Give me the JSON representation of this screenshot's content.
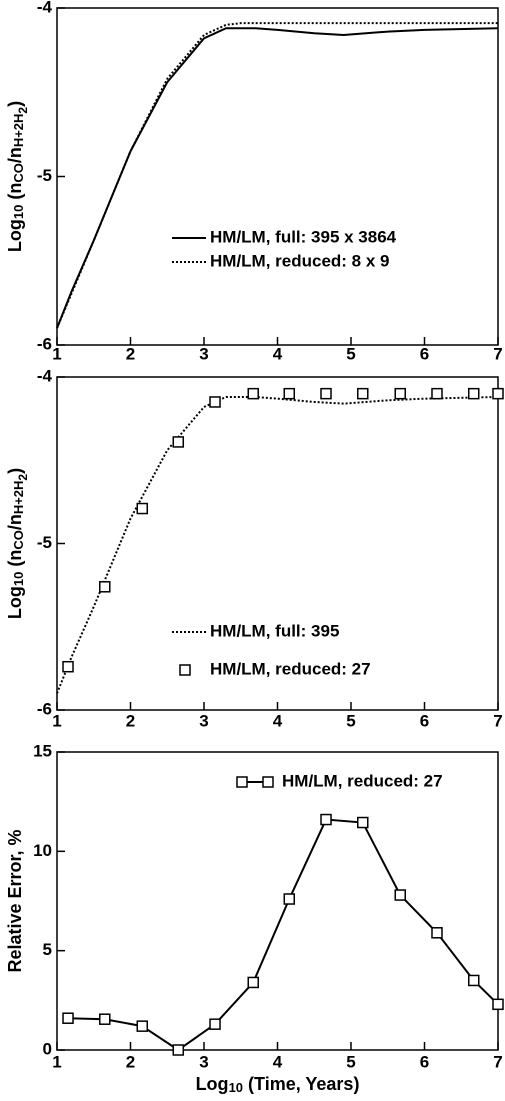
{
  "chart_data": [
    {
      "type": "line",
      "legend": "center",
      "ylabel": [
        {
          "text": "Log",
          "level": 0
        },
        {
          "text": "10",
          "level": 1
        },
        {
          "text": " (n",
          "level": 0
        },
        {
          "text": "CO",
          "level": 1
        },
        {
          "text": "/n",
          "level": 0
        },
        {
          "text": "H+2H",
          "level": 1
        },
        {
          "text": "2",
          "level": 2
        },
        {
          "text": ")",
          "level": 0
        }
      ],
      "xlim": [
        1,
        7
      ],
      "xticks": [
        1,
        2,
        3,
        4,
        5,
        6,
        7
      ],
      "ylim": [
        -6,
        -4
      ],
      "yticks": [
        -6,
        -5,
        -4
      ],
      "series": [
        {
          "name": "HM/LM, full: 395 x 3864",
          "color": "#000000",
          "style": "solid",
          "marker": "none",
          "x": [
            1,
            1.2,
            1.5,
            2,
            2.5,
            3,
            3.3,
            3.7,
            4,
            4.5,
            4.9,
            5.5,
            6,
            7
          ],
          "values": [
            -5.9,
            -5.68,
            -5.38,
            -4.85,
            -4.44,
            -4.18,
            -4.12,
            -4.12,
            -4.13,
            -4.15,
            -4.16,
            -4.14,
            -4.13,
            -4.12
          ]
        },
        {
          "name": "HM/LM, reduced: 8 x 9",
          "color": "#000000",
          "style": "dotted",
          "marker": "none",
          "x": [
            1,
            1.5,
            2,
            2.5,
            3,
            3.3,
            3.5,
            4,
            5,
            6,
            7
          ],
          "values": [
            -5.9,
            -5.38,
            -4.85,
            -4.42,
            -4.16,
            -4.1,
            -4.09,
            -4.09,
            -4.09,
            -4.09,
            -4.09
          ]
        }
      ]
    },
    {
      "type": "line",
      "legend": "lower center",
      "ylabel": [
        {
          "text": "Log",
          "level": 0
        },
        {
          "text": "10",
          "level": 1
        },
        {
          "text": " (n",
          "level": 0
        },
        {
          "text": "CO",
          "level": 1
        },
        {
          "text": "/n",
          "level": 0
        },
        {
          "text": "H+2H",
          "level": 1
        },
        {
          "text": "2",
          "level": 2
        },
        {
          "text": ")",
          "level": 0
        }
      ],
      "xlim": [
        1,
        7
      ],
      "xticks": [
        1,
        2,
        3,
        4,
        5,
        6,
        7
      ],
      "ylim": [
        -6,
        -4
      ],
      "yticks": [
        -6,
        -5,
        -4
      ],
      "series": [
        {
          "name": "HM/LM, full:  395",
          "color": "#000000",
          "style": "dotted",
          "marker": "none",
          "x": [
            1,
            1.2,
            1.5,
            2,
            2.5,
            3,
            3.3,
            3.7,
            4,
            4.5,
            4.9,
            5.5,
            6,
            7
          ],
          "values": [
            -5.9,
            -5.68,
            -5.38,
            -4.85,
            -4.44,
            -4.18,
            -4.12,
            -4.12,
            -4.13,
            -4.15,
            -4.16,
            -4.14,
            -4.13,
            -4.12
          ]
        },
        {
          "name": "HM/LM, reduced:  27",
          "color": "#000000",
          "style": "none",
          "marker": "square",
          "x": [
            1.15,
            1.65,
            2.16,
            2.65,
            3.15,
            3.67,
            4.16,
            4.66,
            5.16,
            5.67,
            6.17,
            6.67,
            7.0
          ],
          "values": [
            -5.74,
            -5.26,
            -4.79,
            -4.39,
            -4.15,
            -4.1,
            -4.1,
            -4.1,
            -4.1,
            -4.1,
            -4.1,
            -4.1,
            -4.1
          ]
        }
      ]
    },
    {
      "type": "line",
      "legend": "upper right",
      "ylabel": [
        {
          "text": "Relative Error, %",
          "level": 0
        }
      ],
      "xlabel": [
        {
          "text": "Log",
          "level": 0
        },
        {
          "text": "10",
          "level": 1
        },
        {
          "text": " (Time, Years)",
          "level": 0
        }
      ],
      "xlim": [
        1,
        7
      ],
      "xticks": [
        1,
        2,
        3,
        4,
        5,
        6,
        7
      ],
      "ylim": [
        0,
        15
      ],
      "yticks": [
        0,
        5,
        10,
        15
      ],
      "series": [
        {
          "name": "HM/LM, reduced:  27",
          "color": "#000000",
          "style": "solid",
          "marker": "square",
          "x": [
            1.15,
            1.65,
            2.16,
            2.65,
            3.15,
            3.67,
            4.16,
            4.66,
            5.16,
            5.67,
            6.17,
            6.67,
            7.0
          ],
          "values": [
            1.6,
            1.55,
            1.2,
            0,
            1.3,
            3.4,
            7.6,
            11.6,
            11.45,
            7.8,
            5.9,
            3.5,
            2.3
          ]
        }
      ]
    }
  ]
}
